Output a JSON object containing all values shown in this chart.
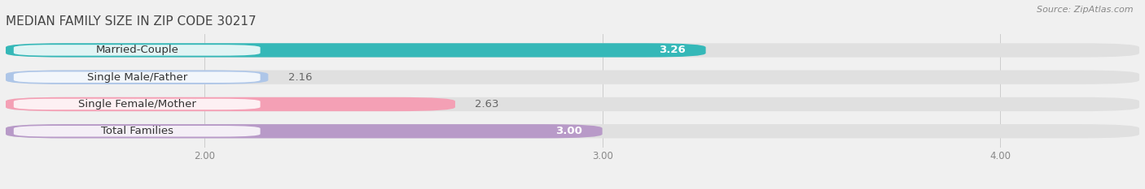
{
  "title": "MEDIAN FAMILY SIZE IN ZIP CODE 30217",
  "source": "Source: ZipAtlas.com",
  "categories": [
    "Married-Couple",
    "Single Male/Father",
    "Single Female/Mother",
    "Total Families"
  ],
  "values": [
    3.26,
    2.16,
    2.63,
    3.0
  ],
  "bar_colors": [
    "#35b8b8",
    "#aec6e8",
    "#f4a0b5",
    "#b89ac8"
  ],
  "background_color": "#f0f0f0",
  "bar_bg_color": "#e0e0e0",
  "xlim_min": 1.5,
  "xlim_max": 4.35,
  "xticks": [
    2.0,
    3.0,
    4.0
  ],
  "xtick_labels": [
    "2.00",
    "3.00",
    "4.00"
  ],
  "label_fontsize": 9.5,
  "value_fontsize": 9.5,
  "title_fontsize": 11,
  "title_color": "#444444",
  "source_color": "#888888",
  "label_color": "#333333",
  "value_inside_color": "#ffffff",
  "value_outside_color": "#666666",
  "grid_color": "#cccccc",
  "bar_height": 0.52,
  "label_pill_color": "#ffffff",
  "label_pill_alpha": 0.85
}
